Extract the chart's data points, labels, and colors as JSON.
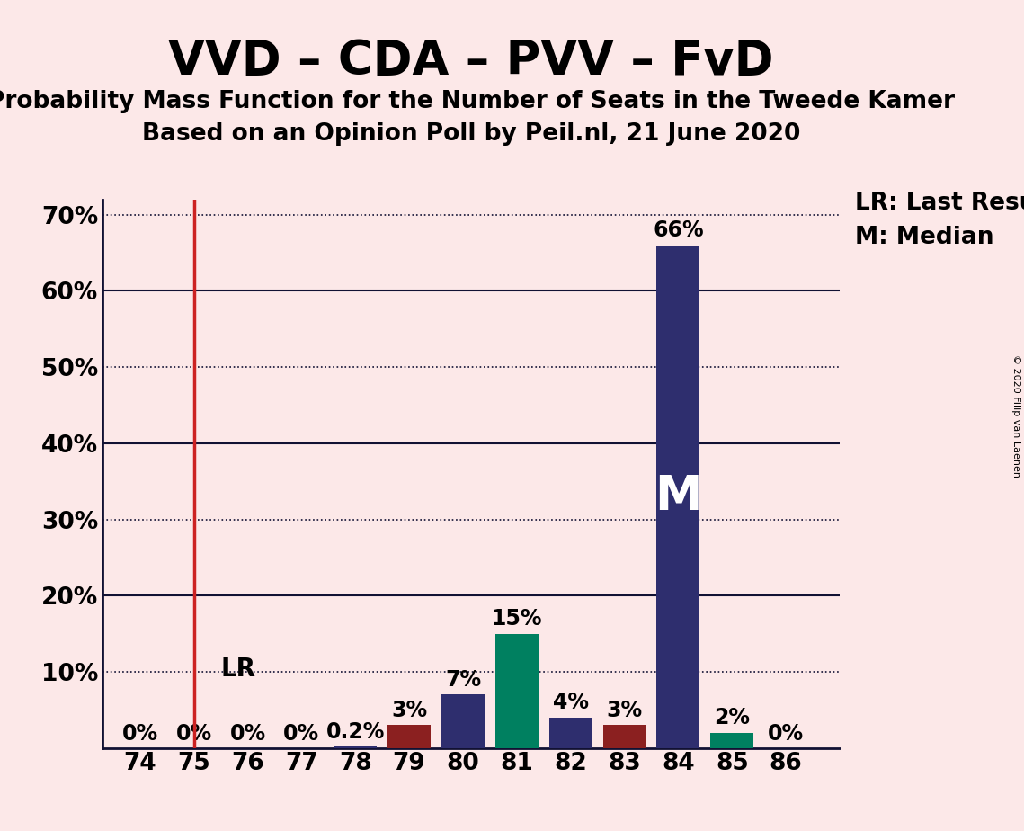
{
  "title": "VVD – CDA – PVV – FvD",
  "subtitle1": "Probability Mass Function for the Number of Seats in the Tweede Kamer",
  "subtitle2": "Based on an Opinion Poll by Peil.nl, 21 June 2020",
  "copyright": "© 2020 Filip van Laenen",
  "background_color": "#fce8e8",
  "seats": [
    74,
    75,
    76,
    77,
    78,
    79,
    80,
    81,
    82,
    83,
    84,
    85,
    86
  ],
  "values": [
    0.0,
    0.0,
    0.0,
    0.0,
    0.002,
    0.03,
    0.07,
    0.15,
    0.04,
    0.03,
    0.66,
    0.02,
    0.0
  ],
  "bar_colors": [
    "#2e2e6e",
    "#2e2e6e",
    "#2e2e6e",
    "#2e2e6e",
    "#2e2e6e",
    "#8b2020",
    "#2e2e6e",
    "#008060",
    "#2e2e6e",
    "#8b2020",
    "#2e2e6e",
    "#008060",
    "#2e2e6e"
  ],
  "labels": [
    "0%",
    "0%",
    "0%",
    "0%",
    "0.2%",
    "3%",
    "7%",
    "15%",
    "4%",
    "3%",
    "66%",
    "2%",
    "0%"
  ],
  "lr_seat": 75,
  "lr_label": "LR",
  "median_seat": 84,
  "median_label": "M",
  "legend_lr": "LR: Last Result",
  "legend_m": "M: Median",
  "ylim": [
    0,
    0.72
  ],
  "yticks": [
    0.0,
    0.1,
    0.2,
    0.3,
    0.4,
    0.5,
    0.6,
    0.7
  ],
  "ytick_labels": [
    "",
    "10%",
    "20%",
    "30%",
    "40%",
    "50%",
    "60%",
    "70%"
  ],
  "dotted_yticks": [
    0.1,
    0.3,
    0.5,
    0.7
  ],
  "solid_yticks": [
    0.2,
    0.4,
    0.6
  ],
  "title_fontsize": 38,
  "subtitle_fontsize": 19,
  "label_fontsize": 17,
  "tick_fontsize": 19,
  "legend_fontsize": 19,
  "lr_text_fontsize": 20,
  "median_text_fontsize": 38
}
